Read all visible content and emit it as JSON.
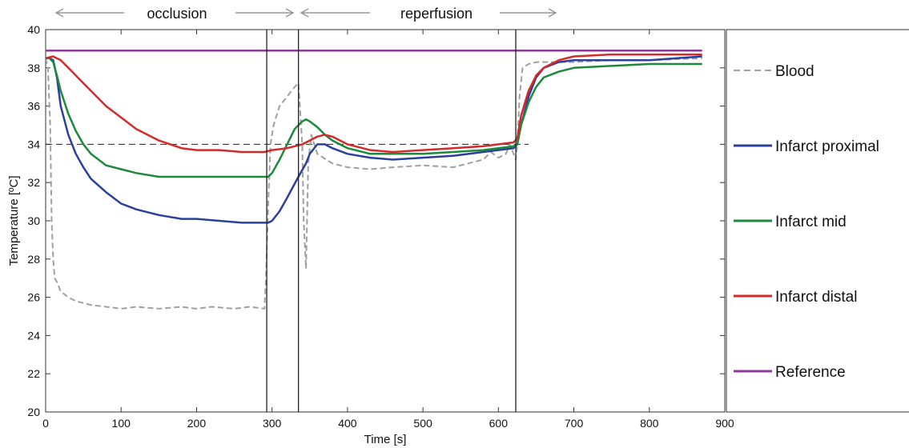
{
  "chart_data": {
    "type": "line",
    "xlabel": "Time [s]",
    "ylabel": "Temperature [ºC]",
    "xlim": [
      0,
      900
    ],
    "ylim": [
      20,
      40
    ],
    "x_ticks": [
      0,
      100,
      200,
      300,
      400,
      500,
      600,
      700,
      800,
      900
    ],
    "y_ticks": [
      20,
      22,
      24,
      26,
      28,
      30,
      32,
      34,
      36,
      38,
      40
    ],
    "grid": false,
    "legend_position": "right",
    "phase_labels": [
      "occlusion",
      "reperfusion"
    ],
    "vertical_lines_x": [
      293,
      335,
      623
    ],
    "reference_line_y": 34,
    "series": [
      {
        "name": "Blood",
        "color": "#a0a0a0",
        "style": "dashed",
        "x": [
          0,
          3,
          6,
          8,
          10,
          12,
          15,
          20,
          30,
          40,
          60,
          80,
          100,
          120,
          150,
          180,
          200,
          220,
          250,
          270,
          290,
          292,
          295,
          298,
          302,
          310,
          320,
          330,
          335,
          340,
          342,
          345,
          348,
          352,
          360,
          380,
          400,
          430,
          460,
          500,
          540,
          560,
          580,
          590,
          600,
          610,
          615,
          620,
          623,
          625,
          628,
          632,
          640,
          650,
          700,
          750,
          800,
          870
        ],
        "values": [
          38.5,
          38.0,
          35.0,
          30.0,
          28.0,
          27.0,
          26.8,
          26.3,
          26.0,
          25.8,
          25.6,
          25.5,
          25.4,
          25.5,
          25.4,
          25.5,
          25.4,
          25.5,
          25.4,
          25.5,
          25.4,
          27.0,
          31.0,
          34.0,
          35.0,
          36.0,
          36.5,
          37.0,
          37.2,
          34.0,
          30.0,
          27.5,
          33.0,
          34.5,
          33.5,
          33.0,
          32.8,
          32.7,
          32.8,
          32.9,
          32.8,
          33.0,
          33.2,
          33.6,
          33.3,
          33.5,
          34.0,
          33.5,
          33.2,
          34.0,
          36.5,
          38.0,
          38.2,
          38.3,
          38.3,
          38.4,
          38.4,
          38.5
        ]
      },
      {
        "name": "Infarct proximal",
        "color": "#2b3f9c",
        "style": "solid",
        "x": [
          0,
          5,
          10,
          15,
          20,
          30,
          40,
          50,
          60,
          80,
          100,
          120,
          150,
          180,
          200,
          230,
          260,
          280,
          290,
          295,
          300,
          310,
          320,
          335,
          345,
          350,
          360,
          370,
          380,
          400,
          430,
          460,
          500,
          540,
          580,
          600,
          620,
          625,
          630,
          640,
          650,
          660,
          680,
          700,
          750,
          800,
          870
        ],
        "values": [
          38.5,
          38.5,
          38.4,
          37.5,
          36.0,
          34.5,
          33.5,
          32.8,
          32.2,
          31.5,
          30.9,
          30.6,
          30.3,
          30.1,
          30.1,
          30.0,
          29.9,
          29.9,
          29.9,
          29.9,
          30.0,
          30.5,
          31.2,
          32.3,
          33.0,
          33.5,
          34.0,
          34.0,
          33.8,
          33.5,
          33.3,
          33.2,
          33.3,
          33.4,
          33.6,
          33.7,
          33.8,
          34.0,
          35.0,
          36.5,
          37.5,
          38.0,
          38.3,
          38.4,
          38.4,
          38.4,
          38.6
        ]
      },
      {
        "name": "Infarct mid",
        "color": "#1c8a3c",
        "style": "solid",
        "x": [
          0,
          5,
          10,
          15,
          20,
          30,
          40,
          50,
          60,
          80,
          100,
          120,
          150,
          180,
          200,
          230,
          260,
          290,
          295,
          300,
          310,
          320,
          330,
          340,
          345,
          350,
          360,
          370,
          380,
          400,
          430,
          460,
          500,
          540,
          580,
          600,
          620,
          625,
          630,
          640,
          650,
          660,
          680,
          700,
          750,
          800,
          870
        ],
        "values": [
          38.5,
          38.5,
          38.3,
          37.6,
          36.8,
          35.6,
          34.7,
          34.0,
          33.5,
          32.9,
          32.7,
          32.5,
          32.3,
          32.3,
          32.3,
          32.3,
          32.3,
          32.3,
          32.3,
          32.5,
          33.2,
          34.0,
          34.8,
          35.2,
          35.3,
          35.2,
          34.9,
          34.5,
          34.2,
          33.8,
          33.5,
          33.5,
          33.5,
          33.6,
          33.7,
          33.8,
          33.9,
          34.0,
          35.0,
          36.2,
          37.0,
          37.5,
          37.8,
          38.0,
          38.1,
          38.2,
          38.2
        ]
      },
      {
        "name": "Infarct distal",
        "color": "#d42a2a",
        "style": "solid",
        "x": [
          0,
          10,
          20,
          30,
          40,
          60,
          80,
          100,
          120,
          150,
          180,
          200,
          230,
          260,
          290,
          300,
          320,
          340,
          350,
          360,
          370,
          380,
          400,
          430,
          460,
          500,
          540,
          580,
          600,
          620,
          625,
          630,
          640,
          650,
          660,
          680,
          700,
          750,
          800,
          870
        ],
        "values": [
          38.5,
          38.6,
          38.4,
          38.0,
          37.6,
          36.8,
          36.0,
          35.4,
          34.8,
          34.2,
          33.8,
          33.7,
          33.7,
          33.6,
          33.6,
          33.7,
          33.8,
          34.0,
          34.2,
          34.4,
          34.5,
          34.4,
          34.0,
          33.7,
          33.6,
          33.7,
          33.8,
          33.9,
          34.0,
          34.1,
          34.3,
          35.5,
          36.8,
          37.6,
          38.0,
          38.4,
          38.6,
          38.7,
          38.7,
          38.7
        ]
      },
      {
        "name": "Reference",
        "color": "#8e3a9c",
        "style": "solid",
        "x": [
          0,
          100,
          200,
          300,
          400,
          500,
          600,
          700,
          800,
          870
        ],
        "values": [
          38.9,
          38.9,
          38.9,
          38.9,
          38.9,
          38.9,
          38.9,
          38.9,
          38.9,
          38.9
        ]
      }
    ]
  }
}
